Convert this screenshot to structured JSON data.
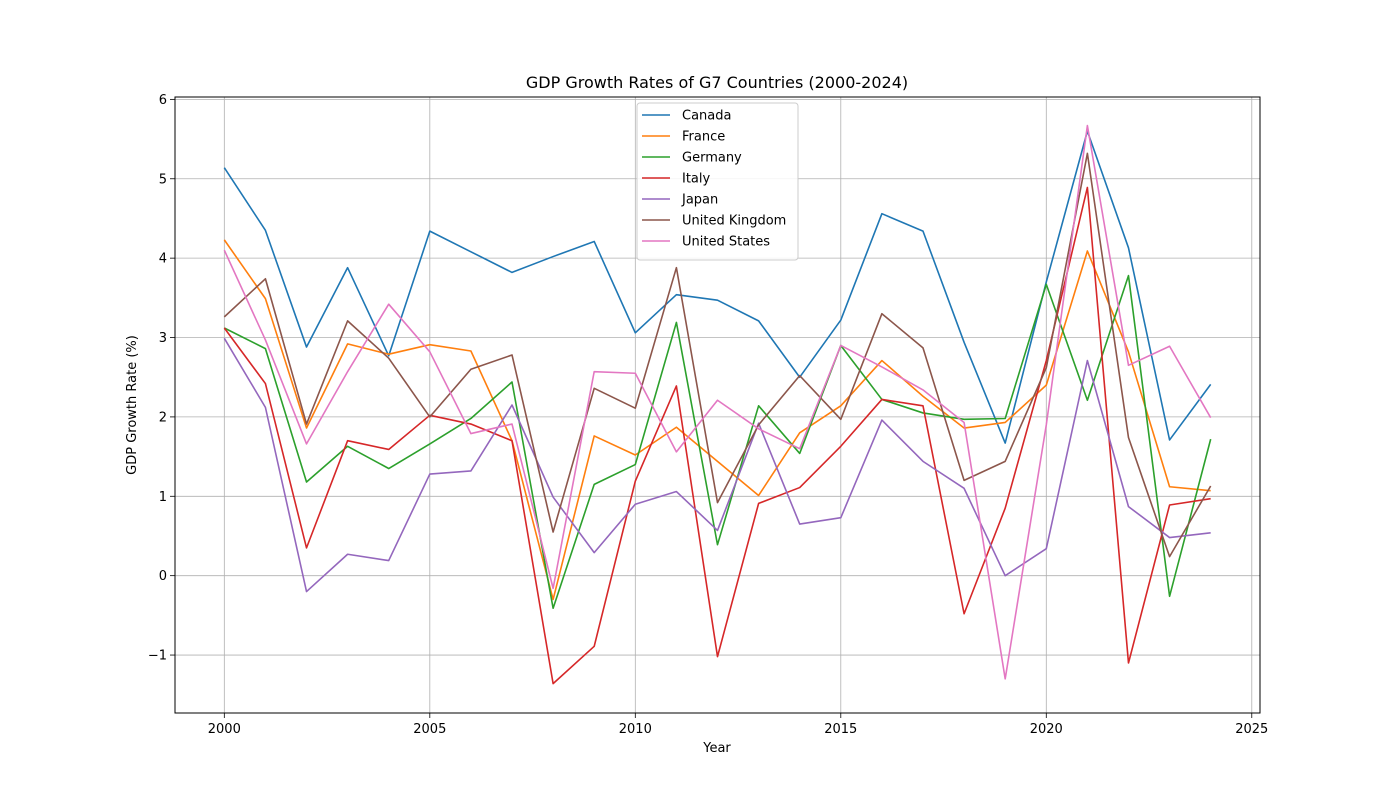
{
  "chart_data": {
    "type": "line",
    "title": "GDP Growth Rates of G7 Countries (2000-2024)",
    "xlabel": "Year",
    "ylabel": "GDP Growth Rate (%)",
    "x": [
      2000,
      2001,
      2002,
      2003,
      2004,
      2005,
      2006,
      2007,
      2008,
      2009,
      2010,
      2011,
      2012,
      2013,
      2014,
      2015,
      2016,
      2017,
      2018,
      2019,
      2020,
      2021,
      2022,
      2023,
      2024
    ],
    "xlim": [
      1998.8,
      2025.2
    ],
    "ylim": [
      -1.73,
      6.03
    ],
    "xticks": [
      2000,
      2005,
      2010,
      2015,
      2020,
      2025
    ],
    "xtick_labels": [
      "2000",
      "2005",
      "2010",
      "2015",
      "2020",
      "2025"
    ],
    "yticks": [
      -1,
      0,
      1,
      2,
      3,
      4,
      5,
      6
    ],
    "ytick_labels": [
      "−1",
      "0",
      "1",
      "2",
      "3",
      "4",
      "5",
      "6"
    ],
    "grid": true,
    "legend_position": "top-center",
    "series": [
      {
        "name": "Canada",
        "color": "#1f77b4",
        "values": [
          5.14,
          4.35,
          2.88,
          3.88,
          2.77,
          4.34,
          4.08,
          3.82,
          4.02,
          4.21,
          3.06,
          3.54,
          3.47,
          3.21,
          2.5,
          3.22,
          4.56,
          4.34,
          2.94,
          1.67,
          3.7,
          5.6,
          4.13,
          1.71,
          2.41
        ]
      },
      {
        "name": "France",
        "color": "#ff7f0e",
        "values": [
          4.23,
          3.49,
          1.86,
          2.92,
          2.79,
          2.91,
          2.83,
          1.7,
          -0.3,
          1.76,
          1.52,
          1.87,
          1.44,
          1.01,
          1.8,
          2.14,
          2.71,
          2.26,
          1.86,
          1.93,
          2.4,
          4.09,
          2.82,
          1.12,
          1.07
        ]
      },
      {
        "name": "Germany",
        "color": "#2ca02c",
        "values": [
          3.12,
          2.86,
          1.18,
          1.63,
          1.35,
          1.66,
          1.98,
          2.44,
          -0.41,
          1.15,
          1.4,
          3.19,
          0.39,
          2.14,
          1.54,
          2.9,
          2.22,
          2.05,
          1.97,
          1.98,
          3.67,
          2.21,
          3.78,
          -0.26,
          1.72
        ]
      },
      {
        "name": "Italy",
        "color": "#d62728",
        "values": [
          3.12,
          2.42,
          0.35,
          1.7,
          1.59,
          2.02,
          1.91,
          1.7,
          -1.36,
          -0.89,
          1.19,
          2.39,
          -1.02,
          0.91,
          1.11,
          1.63,
          2.22,
          2.14,
          -0.48,
          0.85,
          2.71,
          4.89,
          -1.1,
          0.89,
          0.97
        ]
      },
      {
        "name": "Japan",
        "color": "#9467bd",
        "values": [
          2.99,
          2.12,
          -0.2,
          0.27,
          0.19,
          1.28,
          1.32,
          2.15,
          0.99,
          0.29,
          0.9,
          1.06,
          0.57,
          1.92,
          0.65,
          0.73,
          1.96,
          1.44,
          1.1,
          0.0,
          0.34,
          2.71,
          0.87,
          0.48,
          0.54
        ]
      },
      {
        "name": "United Kingdom",
        "color": "#8c564b",
        "values": [
          3.26,
          3.74,
          1.91,
          3.21,
          2.74,
          2.0,
          2.6,
          2.78,
          0.55,
          2.36,
          2.11,
          3.88,
          0.92,
          1.9,
          2.52,
          1.97,
          3.3,
          2.87,
          1.2,
          1.44,
          2.62,
          5.32,
          1.74,
          0.24,
          1.13
        ]
      },
      {
        "name": "United States",
        "color": "#e377c2",
        "values": [
          4.1,
          2.97,
          1.66,
          2.57,
          3.42,
          2.82,
          1.79,
          1.91,
          -0.16,
          2.57,
          2.55,
          1.56,
          2.21,
          1.85,
          1.6,
          2.9,
          2.63,
          2.34,
          1.93,
          -1.3,
          1.9,
          5.67,
          2.65,
          2.89,
          1.99
        ]
      }
    ]
  }
}
